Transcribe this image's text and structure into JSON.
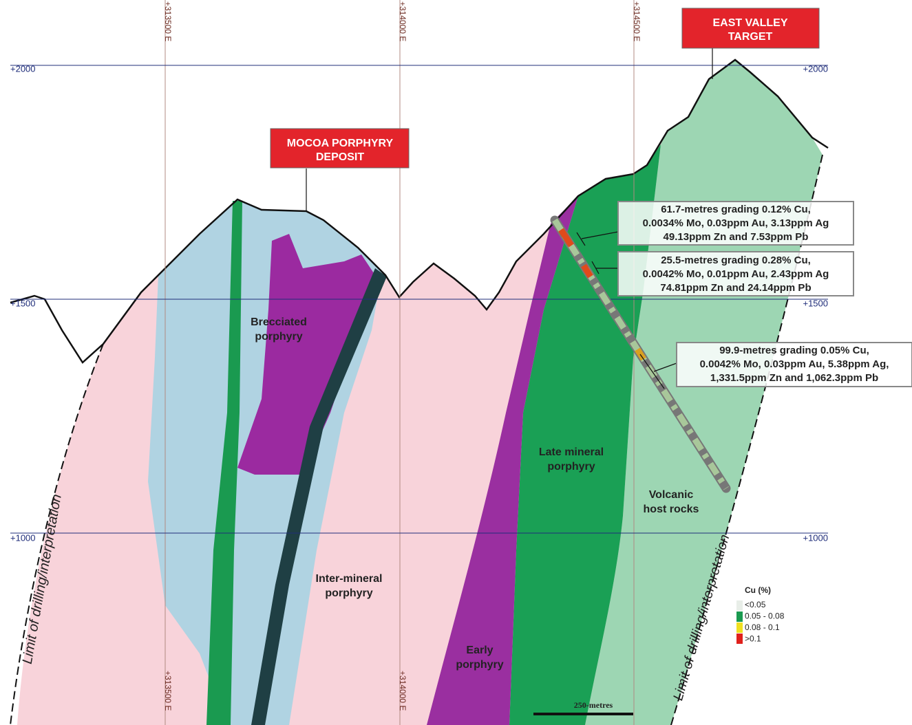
{
  "eastings_top": [
    "+313500 E",
    "+314000 E",
    "+314500 E"
  ],
  "eastings_bottom": [
    "+313500 E",
    "+314000 E"
  ],
  "elevations_left": [
    "+2000",
    "+1500",
    "+1000"
  ],
  "elevations_right": [
    "+2000",
    "+1500",
    "+1000"
  ],
  "targets": [
    {
      "lines": [
        "MOCOA PORPHYRY",
        "DEPOSIT"
      ]
    },
    {
      "lines": [
        "EAST VALLEY",
        "TARGET"
      ]
    }
  ],
  "units": [
    {
      "lines": [
        "Brecciated",
        "porphyry"
      ]
    },
    {
      "lines": [
        "Inter-mineral",
        "porphyry"
      ]
    },
    {
      "lines": [
        "Early",
        "porphyry"
      ]
    },
    {
      "lines": [
        "Late mineral",
        "porphyry"
      ]
    },
    {
      "lines": [
        "Volcanic",
        "host rocks"
      ]
    }
  ],
  "intercepts": [
    {
      "lines": [
        "61.7-metres grading 0.12% Cu,",
        "0.0034% Mo, 0.03ppm Au, 3.13ppm Ag",
        "49.13ppm Zn and 7.53ppm Pb"
      ]
    },
    {
      "lines": [
        "25.5-metres grading 0.28% Cu,",
        "0.0042% Mo, 0.01ppm Au, 2.43ppm Ag",
        "74.81ppm Zn and 24.14ppm Pb"
      ]
    },
    {
      "lines": [
        "99.9-metres grading 0.05% Cu,",
        "0.0042% Mo, 0.03ppm Au, 5.38ppm Ag,",
        "1,331.5ppm Zn and 1,062.3ppm Pb"
      ]
    }
  ],
  "limits": [
    "Limit of drilling/interpretation",
    "Limit of drilling/interpretation"
  ],
  "legend": {
    "title": "Cu (%)",
    "items": [
      "<0.05",
      "0.05 - 0.08",
      "0.08 - 0.1",
      ">0.1"
    ]
  },
  "scale_bar": "250-metres"
}
